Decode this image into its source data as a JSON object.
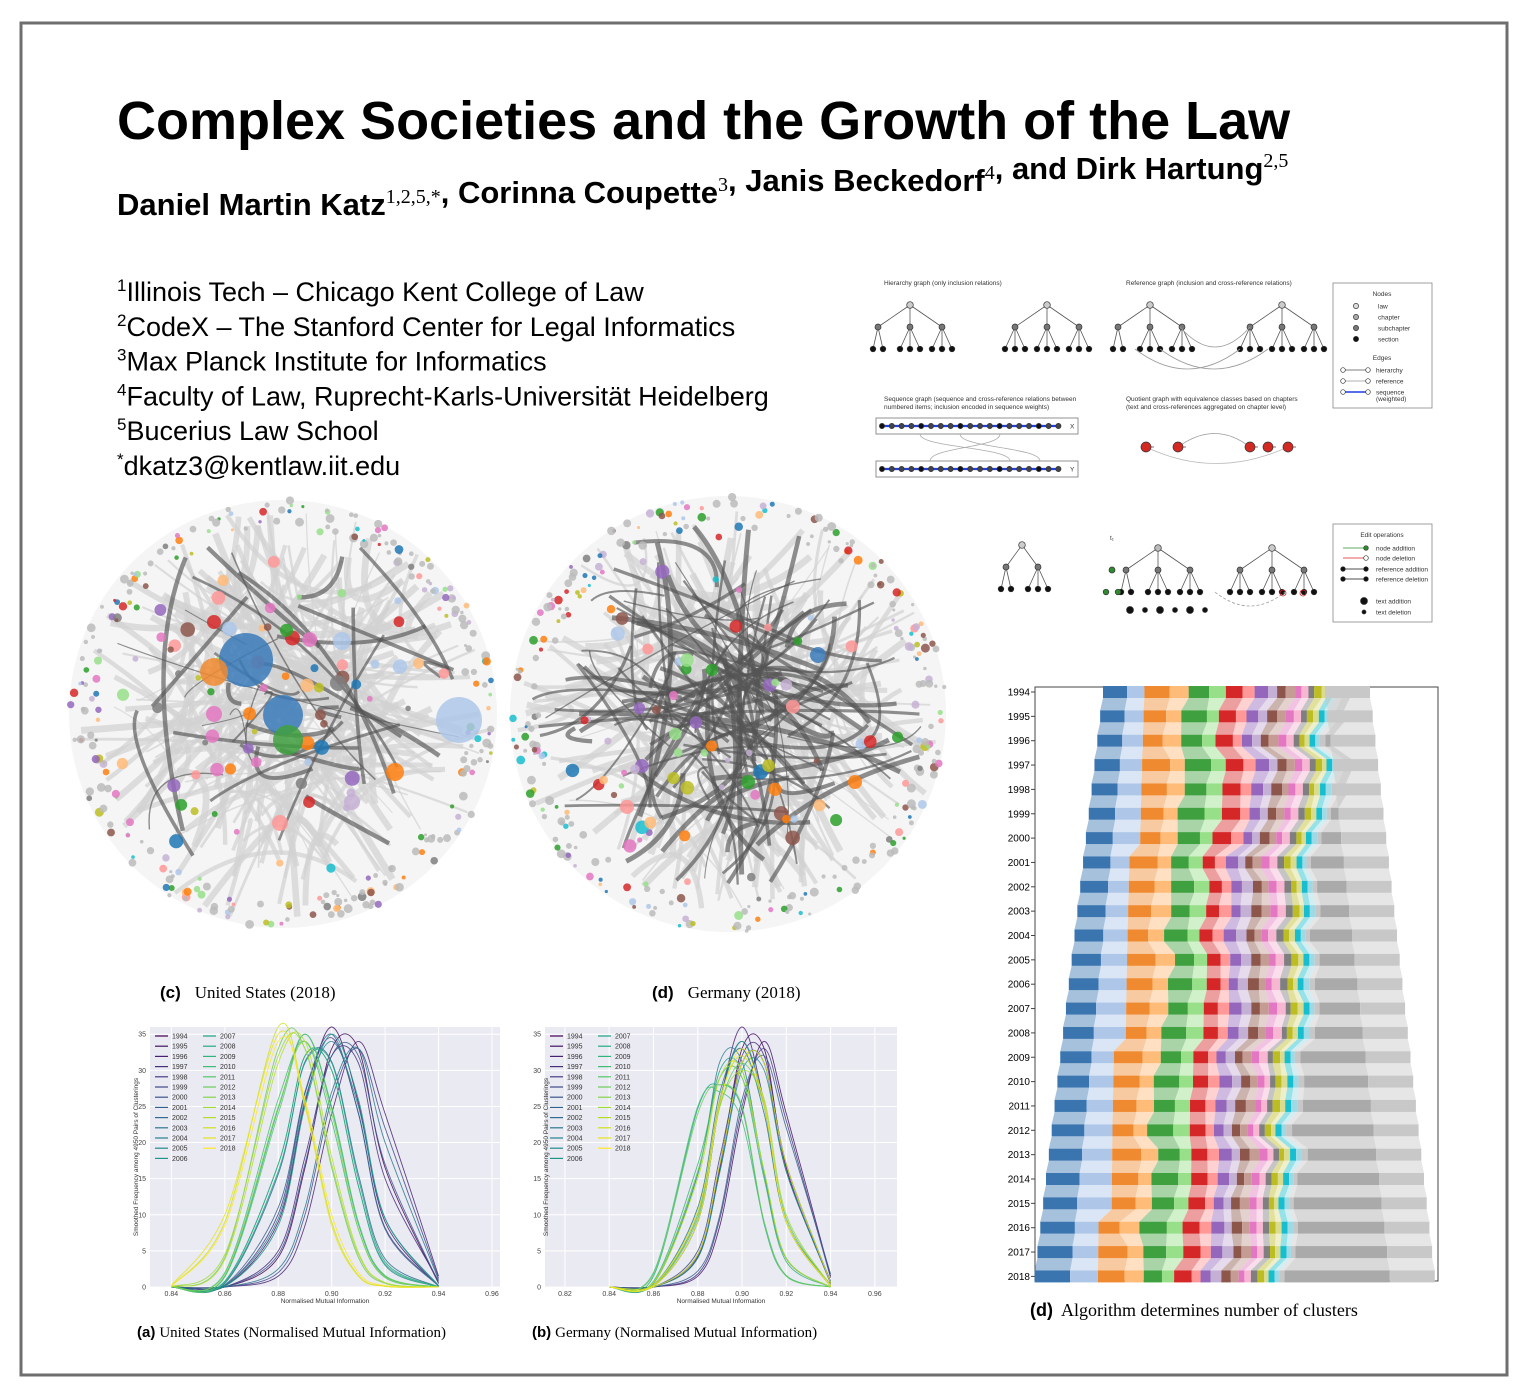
{
  "poster": {
    "title": "Complex Societies and the Growth of the Law",
    "authors": [
      {
        "name": "Daniel Martin Katz",
        "affil": "1,2,5,*"
      },
      {
        "name": ", Corinna Coupette",
        "affil": "3"
      },
      {
        "name": ", Janis Beckedorf",
        "affil": "4"
      },
      {
        "name": ", and Dirk Hartung",
        "affil": "2,5"
      }
    ],
    "affiliations": [
      {
        "mark": "1",
        "text": "Illinois Tech – Chicago Kent College of Law"
      },
      {
        "mark": "2",
        "text": "CodeX – The Stanford Center for Legal Informatics"
      },
      {
        "mark": "3",
        "text": "Max Planck Institute for Informatics"
      },
      {
        "mark": "4",
        "text": "Faculty of Law, Ruprecht-Karls-Universität Heidelberg"
      },
      {
        "mark": "5",
        "text": "Bucerius Law School"
      },
      {
        "mark": "*",
        "text": "dkatz3@kentlaw.iit.edu"
      }
    ],
    "diagrams": {
      "hierarchy_title": "Hierarchy graph (only inclusion relations)",
      "reference_title": "Reference graph (inclusion and cross-reference relations)",
      "sequence_title": [
        "Sequence graph (sequence and cross-reference relations between",
        "numbered items; inclusion encoded in sequence weights)"
      ],
      "quotient_title": [
        "Quotient graph with equivalence classes based on chapters",
        "(text and cross-references aggregated on chapter level)"
      ],
      "seq_x": "X",
      "seq_y": "Y",
      "time_label": "t₁",
      "nodes_title": "Nodes",
      "node_types": [
        "law",
        "chapter",
        "subchapter",
        "section"
      ],
      "edges_title": "Edges",
      "edge_types": [
        "hierarchy",
        "reference",
        "sequence",
        "(weighted)"
      ],
      "edit_title": "Edit operations",
      "edit_types": [
        "node addition",
        "node deletion",
        "reference addition",
        "reference deletion",
        "text addition",
        "text deletion"
      ]
    },
    "us_network": {
      "label": "(c)",
      "caption": "United States (2018)"
    },
    "de_network": {
      "label": "(d)",
      "caption": "Germany (2018)"
    },
    "clusters": {
      "label": "(d)",
      "caption": "Algorithm determines number of clusters",
      "years": [
        1994,
        1995,
        1996,
        1997,
        1998,
        1999,
        2000,
        2001,
        2002,
        2003,
        2004,
        2005,
        2006,
        2007,
        2008,
        2009,
        2010,
        2011,
        2012,
        2013,
        2014,
        2015,
        2016,
        2017,
        2018
      ]
    }
  },
  "chart_data": [
    {
      "type": "line",
      "caption_label": "(a)",
      "caption": "United States (Normalised Mutual Information)",
      "xlabel": "Normalised Mutual Information",
      "ylabel": "Smoothed Frequency among 4950 Pairs of Clusterings",
      "xlim": [
        0.832,
        0.963
      ],
      "ylim": [
        0,
        36
      ],
      "xticks": [
        0.84,
        0.86,
        0.88,
        {
          "value": 0.9,
          "label": "0.90"
        },
        0.92,
        0.94,
        0.96
      ],
      "yticks": [
        0,
        5,
        10,
        15,
        20,
        25,
        30,
        35
      ],
      "grid": true,
      "legend": "upper left",
      "x": [
        0.84,
        0.86,
        0.88,
        0.89,
        0.9,
        0.91,
        0.92,
        0.94
      ],
      "series": [
        {
          "name": "1994",
          "color": "#440154",
          "values": [
            0,
            0,
            4.1,
            16.5,
            33,
            33,
            16.5,
            0.5
          ]
        },
        {
          "name": "1995",
          "color": "#471164",
          "values": [
            0,
            0.1,
            9,
            25.5,
            36,
            25.5,
            9,
            0.1
          ]
        },
        {
          "name": "1996",
          "color": "#482071",
          "values": [
            0,
            0,
            1.5,
            8.5,
            24,
            34,
            24,
            1.5
          ]
        },
        {
          "name": "1997",
          "color": "#472e7c",
          "values": [
            0,
            0,
            5,
            18,
            32,
            31,
            15,
            0.8
          ]
        },
        {
          "name": "1998",
          "color": "#443b84",
          "values": [
            0,
            0.2,
            10.1,
            26.8,
            34.5,
            24.1,
            8.2,
            0.2
          ]
        },
        {
          "name": "1999",
          "color": "#3f4889",
          "values": [
            0,
            0,
            2,
            10,
            26,
            33,
            22,
            1.2
          ]
        },
        {
          "name": "2000",
          "color": "#3a548c",
          "values": [
            0,
            0,
            4.5,
            17,
            32,
            32,
            17,
            0.6
          ]
        },
        {
          "name": "2001",
          "color": "#34608d",
          "values": [
            0,
            0.3,
            11,
            27,
            35,
            24,
            8,
            0.1
          ]
        },
        {
          "name": "2002",
          "color": "#2f6b8e",
          "values": [
            0,
            0.5,
            15.6,
            31.2,
            31.2,
            15.6,
            3.9,
            0
          ]
        },
        {
          "name": "2003",
          "color": "#2a768e",
          "values": [
            0,
            0,
            2.5,
            11,
            27,
            33,
            20,
            1
          ]
        },
        {
          "name": "2004",
          "color": "#26818e",
          "values": [
            0,
            0.2,
            9.5,
            26,
            34,
            25,
            9.5,
            0.2
          ]
        },
        {
          "name": "2005",
          "color": "#228b8d",
          "values": [
            0,
            0.8,
            17,
            32,
            30,
            14,
            3,
            0
          ]
        },
        {
          "name": "2006",
          "color": "#1f958b",
          "values": [
            0,
            0.1,
            8.5,
            25,
            35,
            26,
            9.5,
            0.1
          ]
        },
        {
          "name": "2007",
          "color": "#1fa088",
          "values": [
            0,
            0.6,
            16,
            31,
            31,
            15,
            3.5,
            0
          ]
        },
        {
          "name": "2008",
          "color": "#24aa83",
          "values": [
            0,
            1.5,
            24.7,
            35,
            24.7,
            8.7,
            1.5,
            0
          ]
        },
        {
          "name": "2009",
          "color": "#2fb47c",
          "values": [
            0,
            0.7,
            17,
            32,
            30,
            14,
            3.2,
            0
          ]
        },
        {
          "name": "2010",
          "color": "#40bd72",
          "values": [
            0,
            2,
            26,
            34,
            23,
            8,
            1.3,
            0
          ]
        },
        {
          "name": "2011",
          "color": "#56c667",
          "values": [
            0,
            1.4,
            24,
            35,
            25,
            9,
            1.6,
            0
          ]
        },
        {
          "name": "2012",
          "color": "#6ccd5a",
          "values": [
            0,
            4.1,
            33,
            33,
            16.5,
            4.1,
            0.5,
            0
          ]
        },
        {
          "name": "2013",
          "color": "#84d44b",
          "values": [
            0,
            1.8,
            25,
            34,
            24,
            8,
            1.4,
            0
          ]
        },
        {
          "name": "2014",
          "color": "#9dd93b",
          "values": [
            0,
            4.5,
            32,
            33,
            17,
            4.5,
            0.6,
            0
          ]
        },
        {
          "name": "2015",
          "color": "#b5de2b",
          "values": [
            0,
            3.8,
            31,
            34,
            18,
            4.8,
            0.6,
            0
          ]
        },
        {
          "name": "2016",
          "color": "#cde11d",
          "values": [
            0.1,
            9,
            36,
            25.5,
            9,
            1.6,
            0.1,
            0
          ]
        },
        {
          "name": "2017",
          "color": "#e5e419",
          "values": [
            0.2,
            10,
            35,
            25,
            8.5,
            1.5,
            0.1,
            0
          ]
        },
        {
          "name": "2018",
          "color": "#fde725",
          "values": [
            0.1,
            8.5,
            34,
            26,
            10,
            2,
            0.2,
            0
          ]
        }
      ]
    },
    {
      "type": "line",
      "caption_label": "(b)",
      "caption": "Germany (Normalised Mutual Information)",
      "xlabel": "Normalised Mutual Information",
      "ylabel": "Smoothed Frequency among 4950 Pairs of Clusterings",
      "xlim": [
        0.811,
        0.97
      ],
      "ylim": [
        0,
        36
      ],
      "xticks": [
        0.82,
        0.84,
        0.86,
        0.88,
        {
          "value": 0.9,
          "label": "0.90"
        },
        0.92,
        0.94,
        0.96
      ],
      "yticks": [
        0,
        5,
        10,
        15,
        20,
        25,
        30,
        35
      ],
      "grid": true,
      "legend": "upper left",
      "x": [
        0.84,
        0.86,
        0.88,
        0.89,
        0.9,
        0.91,
        0.92,
        0.94
      ],
      "series": [
        {
          "name": "1994",
          "color": "#440154",
          "values": [
            0,
            0,
            4.1,
            16.5,
            33,
            33,
            16.5,
            0.5
          ]
        },
        {
          "name": "1995",
          "color": "#471164",
          "values": [
            0,
            0,
            1.5,
            8.5,
            24,
            34,
            24,
            1.5
          ]
        },
        {
          "name": "1996",
          "color": "#482071",
          "values": [
            0,
            0.1,
            9,
            25.5,
            36,
            25.5,
            9,
            0.1
          ]
        },
        {
          "name": "1997",
          "color": "#472e7c",
          "values": [
            0,
            0,
            4.5,
            17,
            32,
            32,
            17,
            0.6
          ]
        },
        {
          "name": "1998",
          "color": "#443b84",
          "values": [
            0,
            0,
            1.8,
            9.5,
            25,
            33,
            23,
            1.3
          ]
        },
        {
          "name": "1999",
          "color": "#3f4889",
          "values": [
            0,
            0,
            5,
            18,
            31,
            31,
            16,
            0.8
          ]
        },
        {
          "name": "2000",
          "color": "#3a548c",
          "values": [
            0,
            0.2,
            10,
            26,
            34,
            25,
            9,
            0.2
          ]
        },
        {
          "name": "2001",
          "color": "#34608d",
          "values": [
            0,
            0,
            2.2,
            10,
            26,
            32,
            22,
            1.8
          ]
        },
        {
          "name": "2002",
          "color": "#2f6b8e",
          "values": [
            0,
            0,
            4.3,
            16,
            31,
            31,
            17,
            0.7
          ]
        },
        {
          "name": "2003",
          "color": "#2a768e",
          "values": [
            0,
            0.3,
            11,
            27,
            33,
            24,
            9,
            0.3
          ]
        },
        {
          "name": "2004",
          "color": "#26818e",
          "values": [
            0,
            0.5,
            15.6,
            31.2,
            31.2,
            15.6,
            3.9,
            0
          ]
        },
        {
          "name": "2005",
          "color": "#228b8d",
          "values": [
            0,
            0,
            4,
            16,
            30,
            30,
            16,
            0.6
          ]
        },
        {
          "name": "2006",
          "color": "#1f958b",
          "values": [
            0,
            0.1,
            9,
            25.5,
            34,
            25.5,
            9,
            0.1
          ]
        },
        {
          "name": "2007",
          "color": "#1fa088",
          "values": [
            0,
            0.6,
            16,
            30,
            30,
            16,
            4,
            0
          ]
        },
        {
          "name": "2008",
          "color": "#24aa83",
          "values": [
            0,
            1.5,
            24.7,
            28,
            24.7,
            8.7,
            1.5,
            0
          ]
        },
        {
          "name": "2009",
          "color": "#2fb47c",
          "values": [
            0,
            0.8,
            17,
            29,
            29,
            15,
            3.5,
            0
          ]
        },
        {
          "name": "2010",
          "color": "#40bd72",
          "values": [
            0,
            2,
            25,
            27,
            23,
            9,
            1.6,
            0
          ]
        },
        {
          "name": "2011",
          "color": "#56c667",
          "values": [
            0,
            0.2,
            9.5,
            25,
            31,
            25,
            9.5,
            0.2
          ]
        },
        {
          "name": "2012",
          "color": "#6ccd5a",
          "values": [
            0,
            1.8,
            24,
            28,
            25,
            9,
            1.5,
            0
          ]
        },
        {
          "name": "2013",
          "color": "#84d44b",
          "values": [
            0,
            0.7,
            16,
            29,
            29,
            16,
            4,
            0
          ]
        },
        {
          "name": "2014",
          "color": "#9dd93b",
          "values": [
            0,
            0.2,
            10,
            25,
            30,
            26,
            10,
            0.2
          ]
        },
        {
          "name": "2015",
          "color": "#b5de2b",
          "values": [
            0,
            0.6,
            15,
            29,
            30,
            16,
            4,
            0
          ]
        },
        {
          "name": "2016",
          "color": "#cde11d",
          "values": [
            0,
            0.3,
            10.5,
            26,
            32,
            25,
            9,
            0.2
          ]
        },
        {
          "name": "2017",
          "color": "#e5e419",
          "values": [
            0,
            0,
            4.5,
            17,
            31,
            31,
            17,
            0.6
          ]
        },
        {
          "name": "2018",
          "color": "#fde725",
          "values": [
            0,
            0.1,
            9,
            25.5,
            33,
            25.5,
            9,
            0.1
          ]
        }
      ]
    }
  ]
}
